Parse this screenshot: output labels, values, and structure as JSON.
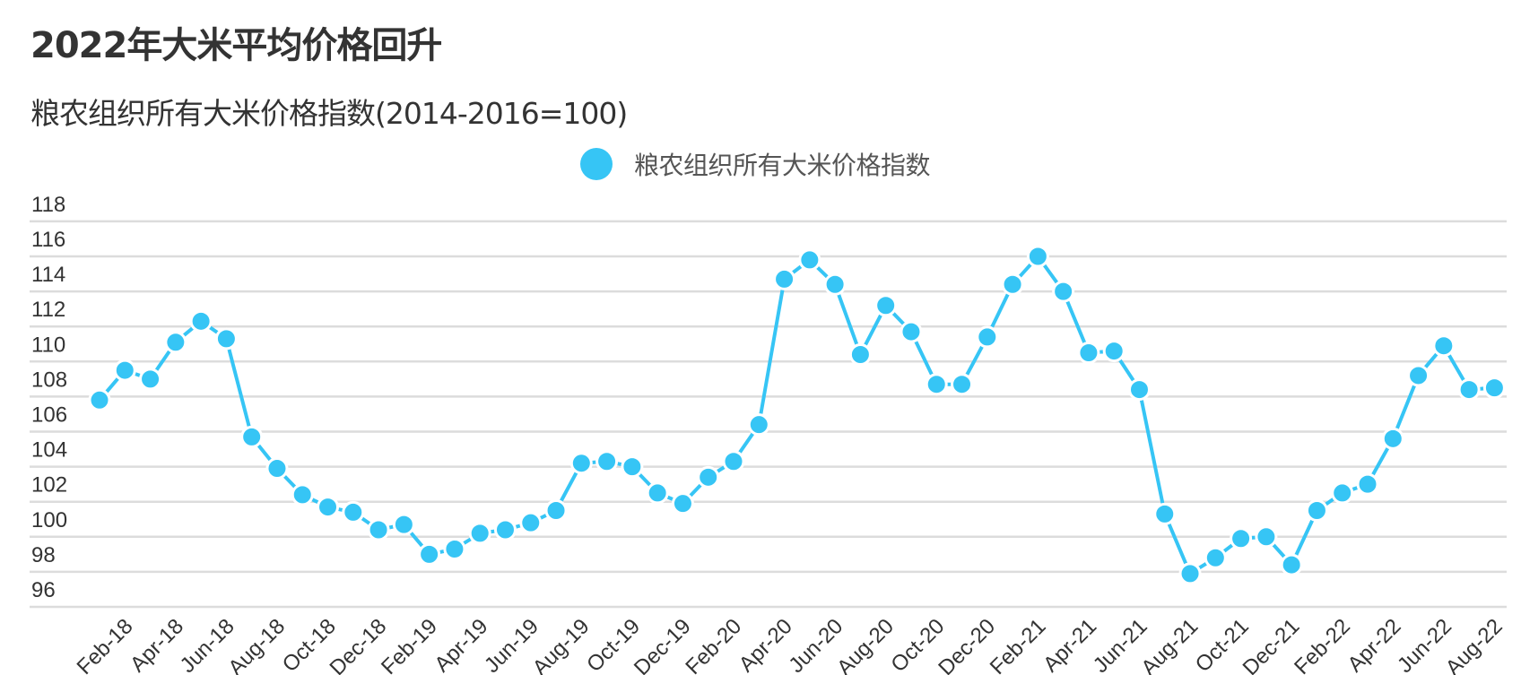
{
  "header": {
    "title": "2022年大米平均价格回升",
    "subtitle": "粮农组织所有大米价格指数(2014-2016=100)"
  },
  "legend": {
    "items": [
      {
        "label": "粮农组织所有大米价格指数",
        "icon": "circle-marker-icon",
        "color": "#36c5f5"
      }
    ]
  },
  "chart_data": {
    "type": "line",
    "title": "2022年大米平均价格回升",
    "subtitle": "粮农组织所有大米价格指数(2014-2016=100)",
    "xlabel": "",
    "ylabel": "",
    "ylim": [
      96,
      118
    ],
    "yticks": [
      118,
      116,
      114,
      112,
      110,
      108,
      106,
      104,
      102,
      100,
      98,
      96
    ],
    "grid": true,
    "legend_position": "top",
    "x_tick_labels": [
      "Feb-18",
      "Apr-18",
      "Jun-18",
      "Aug-18",
      "Oct-18",
      "Dec-18",
      "Feb-19",
      "Apr-19",
      "Jun-19",
      "Aug-19",
      "Oct-19",
      "Dec-19",
      "Feb-20",
      "Apr-20",
      "Jun-20",
      "Aug-20",
      "Oct-20",
      "Dec-20",
      "Feb-21",
      "Apr-21",
      "Jun-21",
      "Aug-21",
      "Oct-21",
      "Dec-21",
      "Feb-22",
      "Apr-22",
      "Jun-22",
      "Aug-22"
    ],
    "x": [
      "Jan-18",
      "Feb-18",
      "Mar-18",
      "Apr-18",
      "May-18",
      "Jun-18",
      "Jul-18",
      "Aug-18",
      "Sep-18",
      "Oct-18",
      "Nov-18",
      "Dec-18",
      "Jan-19",
      "Feb-19",
      "Mar-19",
      "Apr-19",
      "May-19",
      "Jun-19",
      "Jul-19",
      "Aug-19",
      "Sep-19",
      "Oct-19",
      "Nov-19",
      "Dec-19",
      "Jan-20",
      "Feb-20",
      "Mar-20",
      "Apr-20",
      "May-20",
      "Jun-20",
      "Jul-20",
      "Aug-20",
      "Sep-20",
      "Oct-20",
      "Nov-20",
      "Dec-20",
      "Jan-21",
      "Feb-21",
      "Mar-21",
      "Apr-21",
      "May-21",
      "Jun-21",
      "Jul-21",
      "Aug-21",
      "Sep-21",
      "Oct-21",
      "Nov-21",
      "Dec-21",
      "Jan-22",
      "Feb-22",
      "Mar-22",
      "Apr-22",
      "May-22",
      "Jun-22",
      "Jul-22",
      "Aug-22"
    ],
    "series": [
      {
        "name": "粮农组织所有大米价格指数",
        "color": "#36c5f5",
        "values": [
          107.8,
          109.5,
          109.0,
          111.1,
          112.3,
          111.3,
          105.7,
          103.9,
          102.4,
          101.7,
          101.4,
          100.4,
          100.7,
          99.0,
          99.3,
          100.2,
          100.4,
          100.8,
          101.5,
          104.2,
          104.3,
          104.0,
          102.5,
          101.9,
          103.4,
          104.3,
          106.4,
          114.7,
          115.8,
          114.4,
          110.4,
          113.2,
          111.7,
          108.7,
          108.7,
          111.4,
          114.4,
          116.0,
          114.0,
          110.5,
          110.6,
          108.4,
          101.3,
          97.9,
          98.8,
          99.9,
          100.0,
          98.4,
          101.5,
          102.5,
          103.0,
          105.6,
          109.2,
          110.9,
          108.4,
          108.5
        ]
      }
    ]
  }
}
